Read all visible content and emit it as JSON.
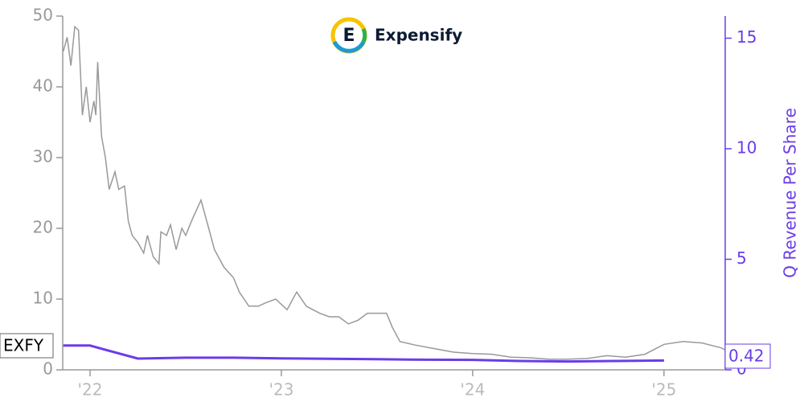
{
  "logo": {
    "letter": "E",
    "name": "Expensify"
  },
  "chart_data": {
    "type": "line",
    "series": [
      {
        "name": "EXFY",
        "color": "#999999",
        "x": [
          2021.86,
          2021.88,
          2021.9,
          2021.92,
          2021.94,
          2021.96,
          2021.98,
          2022.0,
          2022.02,
          2022.03,
          2022.04,
          2022.06,
          2022.08,
          2022.1,
          2022.13,
          2022.15,
          2022.18,
          2022.2,
          2022.22,
          2022.25,
          2022.28,
          2022.3,
          2022.33,
          2022.36,
          2022.37,
          2022.4,
          2022.42,
          2022.45,
          2022.48,
          2022.5,
          2022.53,
          2022.58,
          2022.62,
          2022.65,
          2022.7,
          2022.75,
          2022.78,
          2022.83,
          2022.88,
          2022.92,
          2022.97,
          2023.03,
          2023.08,
          2023.13,
          2023.2,
          2023.25,
          2023.3,
          2023.35,
          2023.4,
          2023.45,
          2023.55,
          2023.58,
          2023.62,
          2023.7,
          2023.8,
          2023.9,
          2024.0,
          2024.1,
          2024.2,
          2024.3,
          2024.4,
          2024.5,
          2024.6,
          2024.7,
          2024.8,
          2024.9,
          2025.0,
          2025.1,
          2025.2,
          2025.3,
          2025.32
        ],
        "values": [
          45,
          47,
          43,
          48.5,
          48,
          36,
          40,
          35,
          38,
          36,
          43.5,
          33,
          30,
          25.5,
          28,
          25.5,
          26,
          21,
          19,
          18,
          16.5,
          19,
          16,
          15,
          19.5,
          19,
          20.5,
          17,
          20,
          19,
          21,
          24,
          20,
          17,
          14.5,
          13,
          11,
          9,
          9,
          9.5,
          10,
          8.5,
          11,
          9,
          8,
          7.5,
          7.5,
          6.5,
          7,
          8,
          8,
          6,
          4,
          3.5,
          3,
          2.5,
          2.3,
          2.2,
          1.8,
          1.7,
          1.5,
          1.5,
          1.6,
          2,
          1.8,
          2.2,
          3.6,
          4,
          3.8,
          3.1,
          2.8
        ]
      },
      {
        "name": "Q Revenue Per Share",
        "color": "#6a3de8",
        "axis": "y2",
        "x": [
          2021.86,
          2022.0,
          2022.25,
          2022.5,
          2022.75,
          2023.0,
          2023.25,
          2023.5,
          2023.75,
          2024.0,
          2024.25,
          2024.5,
          2024.75,
          2025.0
        ],
        "values": [
          1.1,
          1.1,
          0.51,
          0.55,
          0.55,
          0.52,
          0.5,
          0.48,
          0.46,
          0.45,
          0.4,
          0.38,
          0.4,
          0.42
        ]
      }
    ],
    "xlim": [
      2021.857,
      2025.32
    ],
    "xticks": [
      {
        "value": 2022,
        "label": "'22"
      },
      {
        "value": 2023,
        "label": "'23"
      },
      {
        "value": 2024,
        "label": "'24"
      },
      {
        "value": 2025,
        "label": "'25"
      }
    ],
    "ylim": [
      0,
      50
    ],
    "yticks": [
      0,
      10,
      20,
      30,
      40,
      50
    ],
    "y2lim": [
      0,
      16
    ],
    "y2ticks": [
      0,
      5,
      10,
      15
    ]
  }
}
